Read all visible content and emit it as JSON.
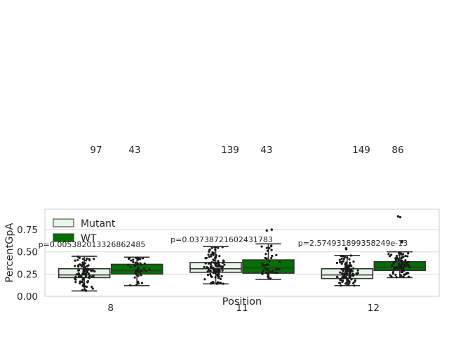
{
  "chart_data": {
    "type": "box",
    "xlabel": "Position",
    "ylabel": "PercentGpA",
    "ylim": [
      0,
      0.98
    ],
    "yticks": [
      0.0,
      0.25,
      0.5,
      0.75
    ],
    "ytick_labels": [
      "0.00",
      "0.25",
      "0.50",
      "0.75"
    ],
    "grid": "horizontal",
    "legend_position": "top-left",
    "categories": [
      "8",
      "11",
      "12"
    ],
    "series": [
      {
        "name": "Mutant",
        "color": "#e6f5e6",
        "boxes": [
          {
            "q1": 0.21,
            "median": 0.24,
            "q3": 0.31,
            "whisker_low": 0.06,
            "whisker_high": 0.45,
            "n": 97,
            "outliers": []
          },
          {
            "q1": 0.27,
            "median": 0.31,
            "q3": 0.38,
            "whisker_low": 0.14,
            "whisker_high": 0.56,
            "n": 139,
            "outliers": []
          },
          {
            "q1": 0.2,
            "median": 0.24,
            "q3": 0.31,
            "whisker_low": 0.12,
            "whisker_high": 0.46,
            "n": 149,
            "outliers": [
              0.53,
              0.54
            ]
          }
        ]
      },
      {
        "name": "WT",
        "color": "#007000",
        "boxes": [
          {
            "q1": 0.25,
            "median": 0.29,
            "q3": 0.36,
            "whisker_low": 0.12,
            "whisker_high": 0.44,
            "n": 43,
            "outliers": []
          },
          {
            "q1": 0.26,
            "median": 0.32,
            "q3": 0.41,
            "whisker_low": 0.19,
            "whisker_high": 0.59,
            "n": 43,
            "outliers": [
              0.75,
              0.74
            ]
          },
          {
            "q1": 0.29,
            "median": 0.33,
            "q3": 0.39,
            "whisker_low": 0.21,
            "whisker_high": 0.5,
            "n": 86,
            "outliers": [
              0.61,
              0.62,
              0.89,
              0.9
            ]
          }
        ]
      }
    ],
    "pvalues": [
      "p=0.005382013326862485",
      "p=0.03738721602431783",
      "p=2.574931899358249e-13"
    ]
  },
  "colors": {
    "axis": "#cccccc",
    "grid": "#d9d9d9",
    "box_edge": "#333333",
    "text": "#262626"
  }
}
